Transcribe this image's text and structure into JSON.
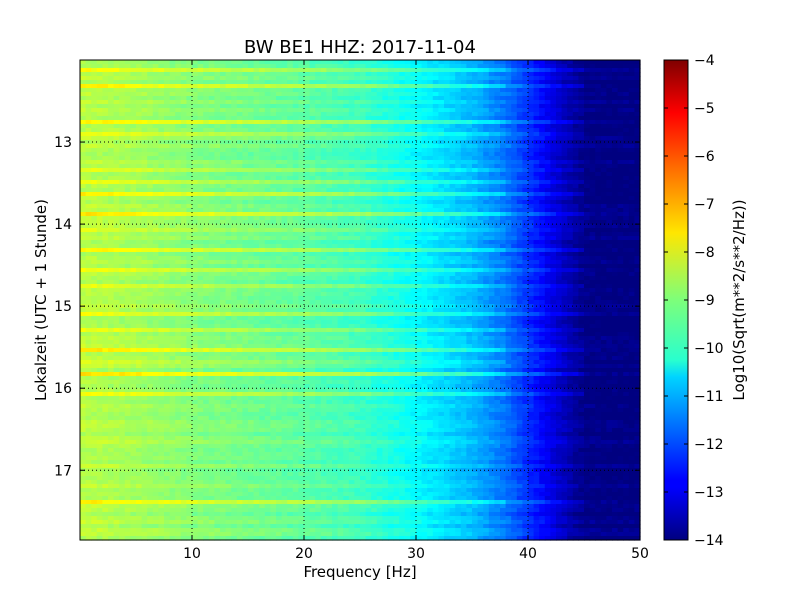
{
  "chart_data": {
    "type": "heatmap",
    "title": "BW BE1 HHZ: 2017-11-04",
    "xlabel": "Frequency [Hz]",
    "ylabel": "Lokalzeit (UTC + 1 Stunde)",
    "xlim": [
      0,
      50
    ],
    "ylim": [
      17.85,
      12.0
    ],
    "x_ticks": [
      10,
      20,
      30,
      40,
      50
    ],
    "y_ticks": [
      13,
      14,
      15,
      16,
      17
    ],
    "grid": true,
    "colormap": "jet",
    "colorbar": {
      "label": "Log10(Sqrt(m**2/s**2/Hz))",
      "min": -14,
      "max": -4,
      "ticks": [
        -4,
        -5,
        -6,
        -7,
        -8,
        -9,
        -10,
        -11,
        -12,
        -13,
        -14
      ]
    },
    "frequency_profile": [
      {
        "hz": 0,
        "value": -8.4
      },
      {
        "hz": 5,
        "value": -8.6
      },
      {
        "hz": 10,
        "value": -8.9
      },
      {
        "hz": 15,
        "value": -9.1
      },
      {
        "hz": 20,
        "value": -9.3
      },
      {
        "hz": 25,
        "value": -9.6
      },
      {
        "hz": 30,
        "value": -10.2
      },
      {
        "hz": 35,
        "value": -10.9
      },
      {
        "hz": 38,
        "value": -11.6
      },
      {
        "hz": 41,
        "value": -12.6
      },
      {
        "hz": 43,
        "value": -13.3
      },
      {
        "hz": 45,
        "value": -13.9
      },
      {
        "hz": 50,
        "value": -14.0
      }
    ],
    "bright_bands": [
      {
        "time": 12.1,
        "offset": 0.5
      },
      {
        "time": 12.28,
        "offset": 0.8
      },
      {
        "time": 12.75,
        "offset": 0.7
      },
      {
        "time": 12.9,
        "offset": 0.6
      },
      {
        "time": 13.3,
        "offset": 0.5
      },
      {
        "time": 13.45,
        "offset": 0.6
      },
      {
        "time": 13.6,
        "offset": 0.9
      },
      {
        "time": 13.85,
        "offset": 0.8
      },
      {
        "time": 14.05,
        "offset": 0.5
      },
      {
        "time": 14.3,
        "offset": 0.7
      },
      {
        "time": 14.55,
        "offset": 0.5
      },
      {
        "time": 14.75,
        "offset": 0.6
      },
      {
        "time": 15.05,
        "offset": 0.5
      },
      {
        "time": 15.25,
        "offset": 0.7
      },
      {
        "time": 15.5,
        "offset": 0.8
      },
      {
        "time": 15.65,
        "offset": 0.5
      },
      {
        "time": 15.8,
        "offset": 0.9
      },
      {
        "time": 16.05,
        "offset": 0.6
      },
      {
        "time": 17.35,
        "offset": 0.7
      }
    ]
  }
}
